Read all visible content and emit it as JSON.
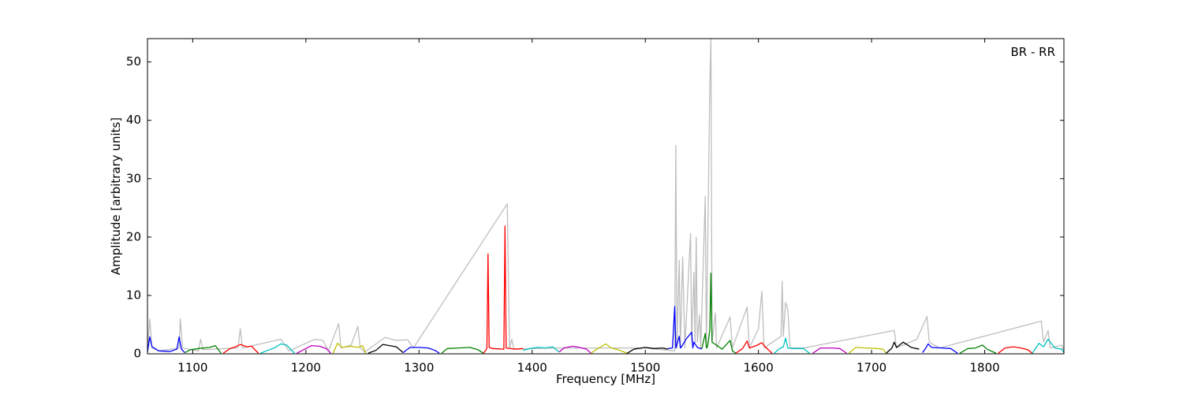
{
  "chart_data": {
    "type": "line",
    "annotation": "BR - RR",
    "xlabel": "Frequency [MHz]",
    "ylabel": "Amplitude [arbitrary units]",
    "xlim": [
      1060,
      1870
    ],
    "ylim": [
      0,
      54
    ],
    "xticks": [
      1100,
      1200,
      1300,
      1400,
      1500,
      1600,
      1700,
      1800
    ],
    "yticks": [
      0,
      10,
      20,
      30,
      40,
      50
    ],
    "series": [
      {
        "color": "#bebebe",
        "x": [
          1060,
          1062,
          1064,
          1070,
          1088,
          1089,
          1091,
          1105,
          1107,
          1109,
          1140,
          1142,
          1144,
          1178,
          1185,
          1208,
          1215,
          1220,
          1229,
          1231,
          1240,
          1246,
          1248,
          1252,
          1270,
          1280,
          1290,
          1295,
          1378,
          1380,
          1382,
          1384,
          1420,
          1500,
          1526,
          1527,
          1528,
          1530,
          1531,
          1533,
          1535,
          1540,
          1541,
          1543,
          1544,
          1545,
          1546,
          1548,
          1549,
          1553,
          1554,
          1557,
          1558,
          1559,
          1562,
          1563,
          1575,
          1577,
          1590,
          1592,
          1600,
          1603,
          1605,
          1620,
          1621,
          1622,
          1624,
          1626,
          1628,
          1640,
          1720,
          1722,
          1740,
          1749,
          1751,
          1760,
          1850,
          1852,
          1856,
          1858,
          1868,
          1870
        ],
        "values": [
          0.5,
          6,
          1,
          0.5,
          1,
          6,
          1,
          0.5,
          2.5,
          0.7,
          1,
          4.3,
          1,
          2.5,
          0.5,
          2.5,
          2.3,
          0.5,
          5.2,
          1,
          1.5,
          4.7,
          1,
          0.3,
          2.8,
          2.3,
          2.4,
          1,
          25.7,
          1,
          2.5,
          0.8,
          1,
          1,
          0.5,
          35.7,
          1,
          16,
          1,
          16.6,
          1,
          20.6,
          2,
          14,
          2,
          20,
          2,
          6.7,
          1,
          27,
          1,
          46,
          54,
          2,
          7,
          1,
          6.3,
          1,
          8,
          1,
          4.3,
          10.7,
          1,
          3,
          12.4,
          3,
          8.8,
          7.5,
          1,
          1,
          4,
          1,
          2.5,
          6.4,
          2,
          1,
          5.6,
          2,
          4,
          1,
          1.5,
          0.5
        ]
      },
      {
        "color": "#0000ff",
        "x": [
          1060,
          1062,
          1064,
          1070,
          1080,
          1086,
          1088,
          1090,
          1093
        ],
        "values": [
          0.3,
          2.9,
          1.2,
          0.5,
          0.4,
          0.8,
          2.9,
          0.8,
          0.2
        ]
      },
      {
        "color": "#008000",
        "x": [
          1093,
          1098,
          1105,
          1115,
          1120,
          1125
        ],
        "values": [
          0.2,
          0.7,
          0.9,
          1.1,
          1.4,
          0.1
        ]
      },
      {
        "color": "#ff0000",
        "x": [
          1127,
          1133,
          1138,
          1142,
          1148,
          1152,
          1158
        ],
        "values": [
          0.1,
          0.9,
          1.2,
          1.6,
          1.2,
          1.3,
          0.1
        ]
      },
      {
        "color": "#00bfbf",
        "x": [
          1160,
          1165,
          1172,
          1178,
          1183,
          1190
        ],
        "values": [
          0.1,
          0.5,
          1.0,
          1.7,
          1.5,
          0.1
        ]
      },
      {
        "color": "#bf00bf",
        "x": [
          1192,
          1198,
          1205,
          1212,
          1218,
          1222
        ],
        "values": [
          0.1,
          0.7,
          1.4,
          1.3,
          0.9,
          0.1
        ]
      },
      {
        "color": "#bfbf00",
        "x": [
          1224,
          1228,
          1232,
          1240,
          1246,
          1250,
          1253
        ],
        "values": [
          0.1,
          1.8,
          1.1,
          1.3,
          1.1,
          1.4,
          0.1
        ]
      },
      {
        "color": "#000000",
        "x": [
          1255,
          1262,
          1268,
          1274,
          1280,
          1286
        ],
        "values": [
          0.1,
          0.6,
          1.6,
          1.4,
          1.2,
          0.2
        ]
      },
      {
        "color": "#0000ff",
        "x": [
          1286,
          1292,
          1300,
          1308,
          1314,
          1318
        ],
        "values": [
          0.2,
          1.1,
          1.1,
          1.0,
          0.6,
          0.1
        ]
      },
      {
        "color": "#008000",
        "x": [
          1320,
          1325,
          1335,
          1345,
          1352,
          1357
        ],
        "values": [
          0.1,
          0.9,
          1.0,
          1.1,
          0.7,
          0.1
        ]
      },
      {
        "color": "#ff0000",
        "x": [
          1357,
          1360,
          1361,
          1362,
          1365,
          1375,
          1376,
          1377,
          1385,
          1392
        ],
        "values": [
          0.1,
          0.9,
          17.1,
          1.1,
          0.9,
          0.8,
          21.9,
          1.0,
          0.8,
          0.9
        ]
      },
      {
        "color": "#00bfbf",
        "x": [
          1392,
          1398,
          1405,
          1412,
          1418,
          1424
        ],
        "values": [
          0.6,
          0.9,
          1.1,
          1.0,
          1.2,
          0.3
        ]
      },
      {
        "color": "#bf00bf",
        "x": [
          1424,
          1428,
          1436,
          1442,
          1448,
          1452
        ],
        "values": [
          0.3,
          1.0,
          1.3,
          1.1,
          0.8,
          0.1
        ]
      },
      {
        "color": "#bfbf00",
        "x": [
          1452,
          1458,
          1465,
          1470,
          1476,
          1484
        ],
        "values": [
          0.1,
          0.9,
          1.7,
          1.0,
          0.7,
          0.1
        ]
      },
      {
        "color": "#000000",
        "x": [
          1484,
          1490,
          1500,
          1508,
          1515,
          1520
        ],
        "values": [
          0.1,
          0.8,
          1.1,
          0.9,
          1.0,
          0.8
        ]
      },
      {
        "color": "#0000ff",
        "x": [
          1520,
          1524,
          1526,
          1527,
          1530,
          1531,
          1532,
          1536,
          1541,
          1542,
          1543,
          1546,
          1550
        ],
        "values": [
          0.9,
          1.0,
          8.1,
          1.0,
          3.0,
          1.0,
          1.2,
          2.5,
          3.7,
          1.0,
          2.0,
          1.1,
          0.8
        ]
      },
      {
        "color": "#008000",
        "x": [
          1550,
          1553,
          1554,
          1555,
          1557,
          1558,
          1559,
          1562,
          1568,
          1575,
          1577,
          1580
        ],
        "values": [
          0.9,
          3.5,
          1.0,
          1.2,
          4.0,
          13.8,
          2.0,
          1.6,
          0.8,
          2.3,
          0.5,
          0.1
        ]
      },
      {
        "color": "#ff0000",
        "x": [
          1580,
          1586,
          1590,
          1592,
          1598,
          1603,
          1606,
          1612
        ],
        "values": [
          0.1,
          0.9,
          2.2,
          1.0,
          1.4,
          1.9,
          1.2,
          0.1
        ]
      },
      {
        "color": "#00bfbf",
        "x": [
          1614,
          1618,
          1622,
          1624,
          1626,
          1630,
          1640,
          1645
        ],
        "values": [
          0.1,
          0.8,
          1.2,
          2.7,
          1.0,
          0.9,
          0.9,
          0.1
        ]
      },
      {
        "color": "#bf00bf",
        "x": [
          1648,
          1655,
          1665,
          1672,
          1678
        ],
        "values": [
          0.1,
          1.0,
          1.0,
          0.9,
          0.1
        ]
      },
      {
        "color": "#bfbf00",
        "x": [
          1680,
          1686,
          1695,
          1705,
          1710,
          1713
        ],
        "values": [
          0.1,
          1.1,
          1.0,
          0.9,
          0.8,
          0.1
        ]
      },
      {
        "color": "#000000",
        "x": [
          1713,
          1718,
          1720,
          1722,
          1728,
          1735,
          1742
        ],
        "values": [
          0.1,
          1.0,
          2.0,
          1.1,
          2.0,
          1.1,
          0.8
        ]
      },
      {
        "color": "#0000ff",
        "x": [
          1745,
          1748,
          1750,
          1753,
          1762,
          1770,
          1776
        ],
        "values": [
          0.2,
          1.0,
          1.7,
          1.1,
          1.0,
          0.9,
          0.1
        ]
      },
      {
        "color": "#008000",
        "x": [
          1778,
          1785,
          1792,
          1798,
          1802,
          1810
        ],
        "values": [
          0.1,
          0.9,
          1.0,
          1.5,
          0.8,
          0.1
        ]
      },
      {
        "color": "#ff0000",
        "x": [
          1812,
          1818,
          1825,
          1832,
          1838,
          1842
        ],
        "values": [
          0.1,
          1.0,
          1.2,
          1.0,
          0.7,
          0.1
        ]
      },
      {
        "color": "#00bfbf",
        "x": [
          1842,
          1848,
          1852,
          1856,
          1862,
          1868,
          1870
        ],
        "values": [
          0.1,
          1.8,
          1.2,
          2.5,
          1.0,
          0.8,
          0.2
        ]
      }
    ]
  }
}
